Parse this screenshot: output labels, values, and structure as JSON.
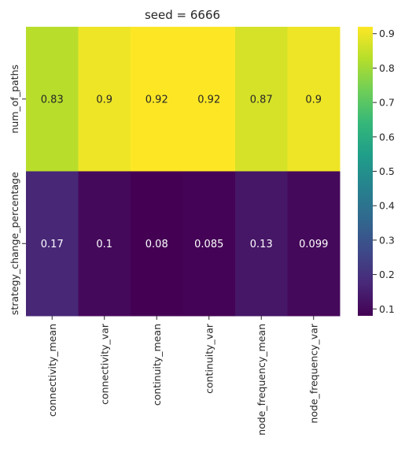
{
  "chart_data": {
    "type": "heatmap",
    "title": "seed = 6666",
    "x_categories": [
      "connectivity_mean",
      "connectivity_var",
      "continuity_mean",
      "continuity_var",
      "node_frequency_mean",
      "node_frequency_var"
    ],
    "y_categories": [
      "num_of_paths",
      "strategy_change_percentage"
    ],
    "values": [
      [
        0.83,
        0.9,
        0.92,
        0.92,
        0.87,
        0.9
      ],
      [
        0.17,
        0.1,
        0.08,
        0.085,
        0.13,
        0.099
      ]
    ],
    "colormap": "viridis",
    "vmin": 0.08,
    "vmax": 0.92,
    "colorbar_ticks": [
      "0.1",
      "0.2",
      "0.3",
      "0.4",
      "0.5",
      "0.6",
      "0.7",
      "0.8",
      "0.9"
    ],
    "annotation_colors": {
      "dark": "#262626",
      "light": "#ffffff"
    }
  }
}
